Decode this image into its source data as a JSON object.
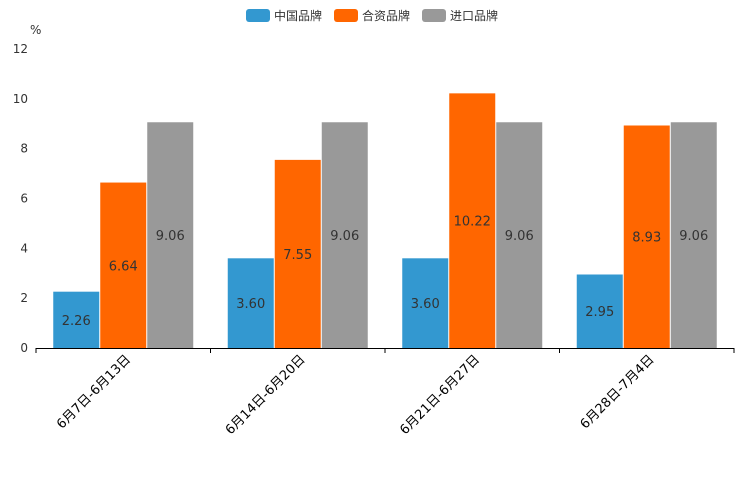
{
  "chart_data": {
    "type": "bar",
    "unit_label": "%",
    "categories": [
      "6月7日-6月13日",
      "6月14日-6月20日",
      "6月21日-6月27日",
      "6月28日-7月4日"
    ],
    "series": [
      {
        "name": "中国品牌",
        "color": "#3398d0",
        "values": [
          2.26,
          3.6,
          3.6,
          2.95
        ],
        "labels": [
          "2.26",
          "3.60",
          "3.60",
          "2.95"
        ]
      },
      {
        "name": "合资品牌",
        "color": "#ff6600",
        "values": [
          6.64,
          7.55,
          10.22,
          8.93
        ],
        "labels": [
          "6.64",
          "7.55",
          "10.22",
          "8.93"
        ]
      },
      {
        "name": "进口品牌",
        "color": "#999999",
        "values": [
          9.06,
          9.06,
          9.06,
          9.06
        ],
        "labels": [
          "9.06",
          "9.06",
          "9.06",
          "9.06"
        ]
      }
    ],
    "yticks": [
      "0",
      "2",
      "4",
      "6",
      "8",
      "10",
      "12"
    ],
    "ylim": [
      0,
      12
    ],
    "legend_position": "top-center",
    "grid": false
  }
}
